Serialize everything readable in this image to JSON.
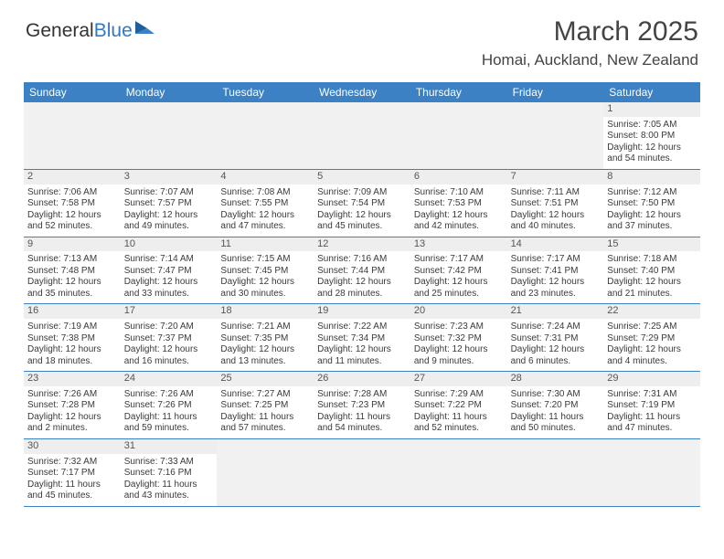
{
  "logo": {
    "text1": "General",
    "text2": "Blue"
  },
  "title": "March 2025",
  "location": "Homai, Auckland, New Zealand",
  "colors": {
    "header_bg": "#3b81c3",
    "header_text": "#ffffff",
    "daynum_bg": "#eeeeee",
    "blank_bg": "#f1f1f1",
    "row_border": "#3b81c3",
    "logo_blue": "#2f7ac0",
    "body_text": "#3a3a3a"
  },
  "daysOfWeek": [
    "Sunday",
    "Monday",
    "Tuesday",
    "Wednesday",
    "Thursday",
    "Friday",
    "Saturday"
  ],
  "weeks": [
    [
      {
        "blank": true
      },
      {
        "blank": true
      },
      {
        "blank": true
      },
      {
        "blank": true
      },
      {
        "blank": true
      },
      {
        "blank": true
      },
      {
        "n": "1",
        "sr": "Sunrise: 7:05 AM",
        "ss": "Sunset: 8:00 PM",
        "d1": "Daylight: 12 hours",
        "d2": "and 54 minutes."
      }
    ],
    [
      {
        "n": "2",
        "sr": "Sunrise: 7:06 AM",
        "ss": "Sunset: 7:58 PM",
        "d1": "Daylight: 12 hours",
        "d2": "and 52 minutes."
      },
      {
        "n": "3",
        "sr": "Sunrise: 7:07 AM",
        "ss": "Sunset: 7:57 PM",
        "d1": "Daylight: 12 hours",
        "d2": "and 49 minutes."
      },
      {
        "n": "4",
        "sr": "Sunrise: 7:08 AM",
        "ss": "Sunset: 7:55 PM",
        "d1": "Daylight: 12 hours",
        "d2": "and 47 minutes."
      },
      {
        "n": "5",
        "sr": "Sunrise: 7:09 AM",
        "ss": "Sunset: 7:54 PM",
        "d1": "Daylight: 12 hours",
        "d2": "and 45 minutes."
      },
      {
        "n": "6",
        "sr": "Sunrise: 7:10 AM",
        "ss": "Sunset: 7:53 PM",
        "d1": "Daylight: 12 hours",
        "d2": "and 42 minutes."
      },
      {
        "n": "7",
        "sr": "Sunrise: 7:11 AM",
        "ss": "Sunset: 7:51 PM",
        "d1": "Daylight: 12 hours",
        "d2": "and 40 minutes."
      },
      {
        "n": "8",
        "sr": "Sunrise: 7:12 AM",
        "ss": "Sunset: 7:50 PM",
        "d1": "Daylight: 12 hours",
        "d2": "and 37 minutes."
      }
    ],
    [
      {
        "n": "9",
        "sr": "Sunrise: 7:13 AM",
        "ss": "Sunset: 7:48 PM",
        "d1": "Daylight: 12 hours",
        "d2": "and 35 minutes."
      },
      {
        "n": "10",
        "sr": "Sunrise: 7:14 AM",
        "ss": "Sunset: 7:47 PM",
        "d1": "Daylight: 12 hours",
        "d2": "and 33 minutes."
      },
      {
        "n": "11",
        "sr": "Sunrise: 7:15 AM",
        "ss": "Sunset: 7:45 PM",
        "d1": "Daylight: 12 hours",
        "d2": "and 30 minutes."
      },
      {
        "n": "12",
        "sr": "Sunrise: 7:16 AM",
        "ss": "Sunset: 7:44 PM",
        "d1": "Daylight: 12 hours",
        "d2": "and 28 minutes."
      },
      {
        "n": "13",
        "sr": "Sunrise: 7:17 AM",
        "ss": "Sunset: 7:42 PM",
        "d1": "Daylight: 12 hours",
        "d2": "and 25 minutes."
      },
      {
        "n": "14",
        "sr": "Sunrise: 7:17 AM",
        "ss": "Sunset: 7:41 PM",
        "d1": "Daylight: 12 hours",
        "d2": "and 23 minutes."
      },
      {
        "n": "15",
        "sr": "Sunrise: 7:18 AM",
        "ss": "Sunset: 7:40 PM",
        "d1": "Daylight: 12 hours",
        "d2": "and 21 minutes."
      }
    ],
    [
      {
        "n": "16",
        "sr": "Sunrise: 7:19 AM",
        "ss": "Sunset: 7:38 PM",
        "d1": "Daylight: 12 hours",
        "d2": "and 18 minutes."
      },
      {
        "n": "17",
        "sr": "Sunrise: 7:20 AM",
        "ss": "Sunset: 7:37 PM",
        "d1": "Daylight: 12 hours",
        "d2": "and 16 minutes."
      },
      {
        "n": "18",
        "sr": "Sunrise: 7:21 AM",
        "ss": "Sunset: 7:35 PM",
        "d1": "Daylight: 12 hours",
        "d2": "and 13 minutes."
      },
      {
        "n": "19",
        "sr": "Sunrise: 7:22 AM",
        "ss": "Sunset: 7:34 PM",
        "d1": "Daylight: 12 hours",
        "d2": "and 11 minutes."
      },
      {
        "n": "20",
        "sr": "Sunrise: 7:23 AM",
        "ss": "Sunset: 7:32 PM",
        "d1": "Daylight: 12 hours",
        "d2": "and 9 minutes."
      },
      {
        "n": "21",
        "sr": "Sunrise: 7:24 AM",
        "ss": "Sunset: 7:31 PM",
        "d1": "Daylight: 12 hours",
        "d2": "and 6 minutes."
      },
      {
        "n": "22",
        "sr": "Sunrise: 7:25 AM",
        "ss": "Sunset: 7:29 PM",
        "d1": "Daylight: 12 hours",
        "d2": "and 4 minutes."
      }
    ],
    [
      {
        "n": "23",
        "sr": "Sunrise: 7:26 AM",
        "ss": "Sunset: 7:28 PM",
        "d1": "Daylight: 12 hours",
        "d2": "and 2 minutes."
      },
      {
        "n": "24",
        "sr": "Sunrise: 7:26 AM",
        "ss": "Sunset: 7:26 PM",
        "d1": "Daylight: 11 hours",
        "d2": "and 59 minutes."
      },
      {
        "n": "25",
        "sr": "Sunrise: 7:27 AM",
        "ss": "Sunset: 7:25 PM",
        "d1": "Daylight: 11 hours",
        "d2": "and 57 minutes."
      },
      {
        "n": "26",
        "sr": "Sunrise: 7:28 AM",
        "ss": "Sunset: 7:23 PM",
        "d1": "Daylight: 11 hours",
        "d2": "and 54 minutes."
      },
      {
        "n": "27",
        "sr": "Sunrise: 7:29 AM",
        "ss": "Sunset: 7:22 PM",
        "d1": "Daylight: 11 hours",
        "d2": "and 52 minutes."
      },
      {
        "n": "28",
        "sr": "Sunrise: 7:30 AM",
        "ss": "Sunset: 7:20 PM",
        "d1": "Daylight: 11 hours",
        "d2": "and 50 minutes."
      },
      {
        "n": "29",
        "sr": "Sunrise: 7:31 AM",
        "ss": "Sunset: 7:19 PM",
        "d1": "Daylight: 11 hours",
        "d2": "and 47 minutes."
      }
    ],
    [
      {
        "n": "30",
        "sr": "Sunrise: 7:32 AM",
        "ss": "Sunset: 7:17 PM",
        "d1": "Daylight: 11 hours",
        "d2": "and 45 minutes."
      },
      {
        "n": "31",
        "sr": "Sunrise: 7:33 AM",
        "ss": "Sunset: 7:16 PM",
        "d1": "Daylight: 11 hours",
        "d2": "and 43 minutes."
      },
      {
        "blank": true
      },
      {
        "blank": true
      },
      {
        "blank": true
      },
      {
        "blank": true
      },
      {
        "blank": true
      }
    ]
  ]
}
